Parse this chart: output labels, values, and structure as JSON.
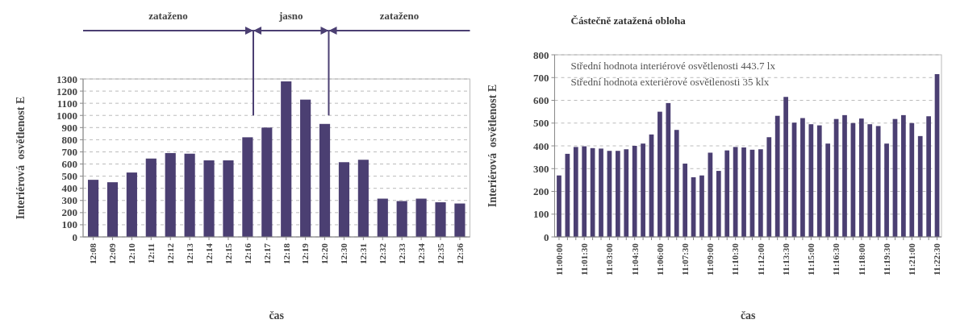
{
  "chart_data": [
    {
      "type": "bar",
      "xlabel": "čas",
      "ylabel": "Interiérová  osvětlenost E",
      "categories": [
        "12:08",
        "12:09",
        "12:10",
        "12:11",
        "12:12",
        "12:13",
        "12:14",
        "12:15",
        "12:16",
        "12:17",
        "12:18",
        "12:19",
        "12:20",
        "12:30",
        "12:31",
        "12:32",
        "12:33",
        "12:34",
        "12:35",
        "12:36"
      ],
      "series": [
        {
          "color": "#4b3f72",
          "values": [
            470,
            450,
            530,
            645,
            690,
            685,
            630,
            630,
            820,
            900,
            1280,
            1130,
            930,
            615,
            635,
            315,
            295,
            315,
            285,
            275
          ]
        }
      ],
      "ylim": [
        0,
        1300
      ],
      "yticks": [
        0,
        100,
        200,
        300,
        400,
        500,
        600,
        700,
        800,
        900,
        1000,
        1100,
        1200,
        1300
      ],
      "grid": "y",
      "annotations": [
        "zataženo",
        "jasno",
        "zataženo"
      ]
    },
    {
      "type": "bar",
      "title": "Částečně zatažená obloha",
      "xlabel": "čas",
      "ylabel": "Interiérová  osvětlenost E",
      "annotations": [
        "Střední hodnota interiérové osvětlenosti 443.7 lx",
        "Střední hodnota exteriérové osvětlenosti 35 klx"
      ],
      "categories": [
        "11:00:00",
        null,
        null,
        "11:01:30",
        null,
        null,
        "11:03:00",
        null,
        null,
        "11:04:30",
        null,
        null,
        "11:06:00",
        null,
        null,
        "11:07:30",
        null,
        null,
        "11:09:00",
        null,
        null,
        "11:10:30",
        null,
        null,
        "11:12:00",
        null,
        null,
        "11:13:30",
        null,
        null,
        "11:15:00",
        null,
        null,
        "11:16:30",
        null,
        null,
        "11:18:00",
        null,
        null,
        "11:19:30",
        null,
        null,
        "11:21:00",
        null,
        null,
        "11:22:30"
      ],
      "series": [
        {
          "color": "#4b3f72",
          "values": [
            270,
            365,
            395,
            398,
            390,
            388,
            378,
            378,
            385,
            400,
            410,
            450,
            550,
            588,
            470,
            322,
            262,
            270,
            370,
            290,
            380,
            395,
            393,
            383,
            385,
            438,
            532,
            615,
            502,
            522,
            495,
            490,
            410,
            518,
            535,
            500,
            520,
            495,
            487,
            410,
            518,
            535,
            500,
            443,
            530,
            715
          ]
        }
      ],
      "ylim": [
        0,
        800
      ],
      "yticks": [
        0,
        100,
        200,
        300,
        400,
        500,
        600,
        700,
        800
      ],
      "grid": "y"
    }
  ]
}
